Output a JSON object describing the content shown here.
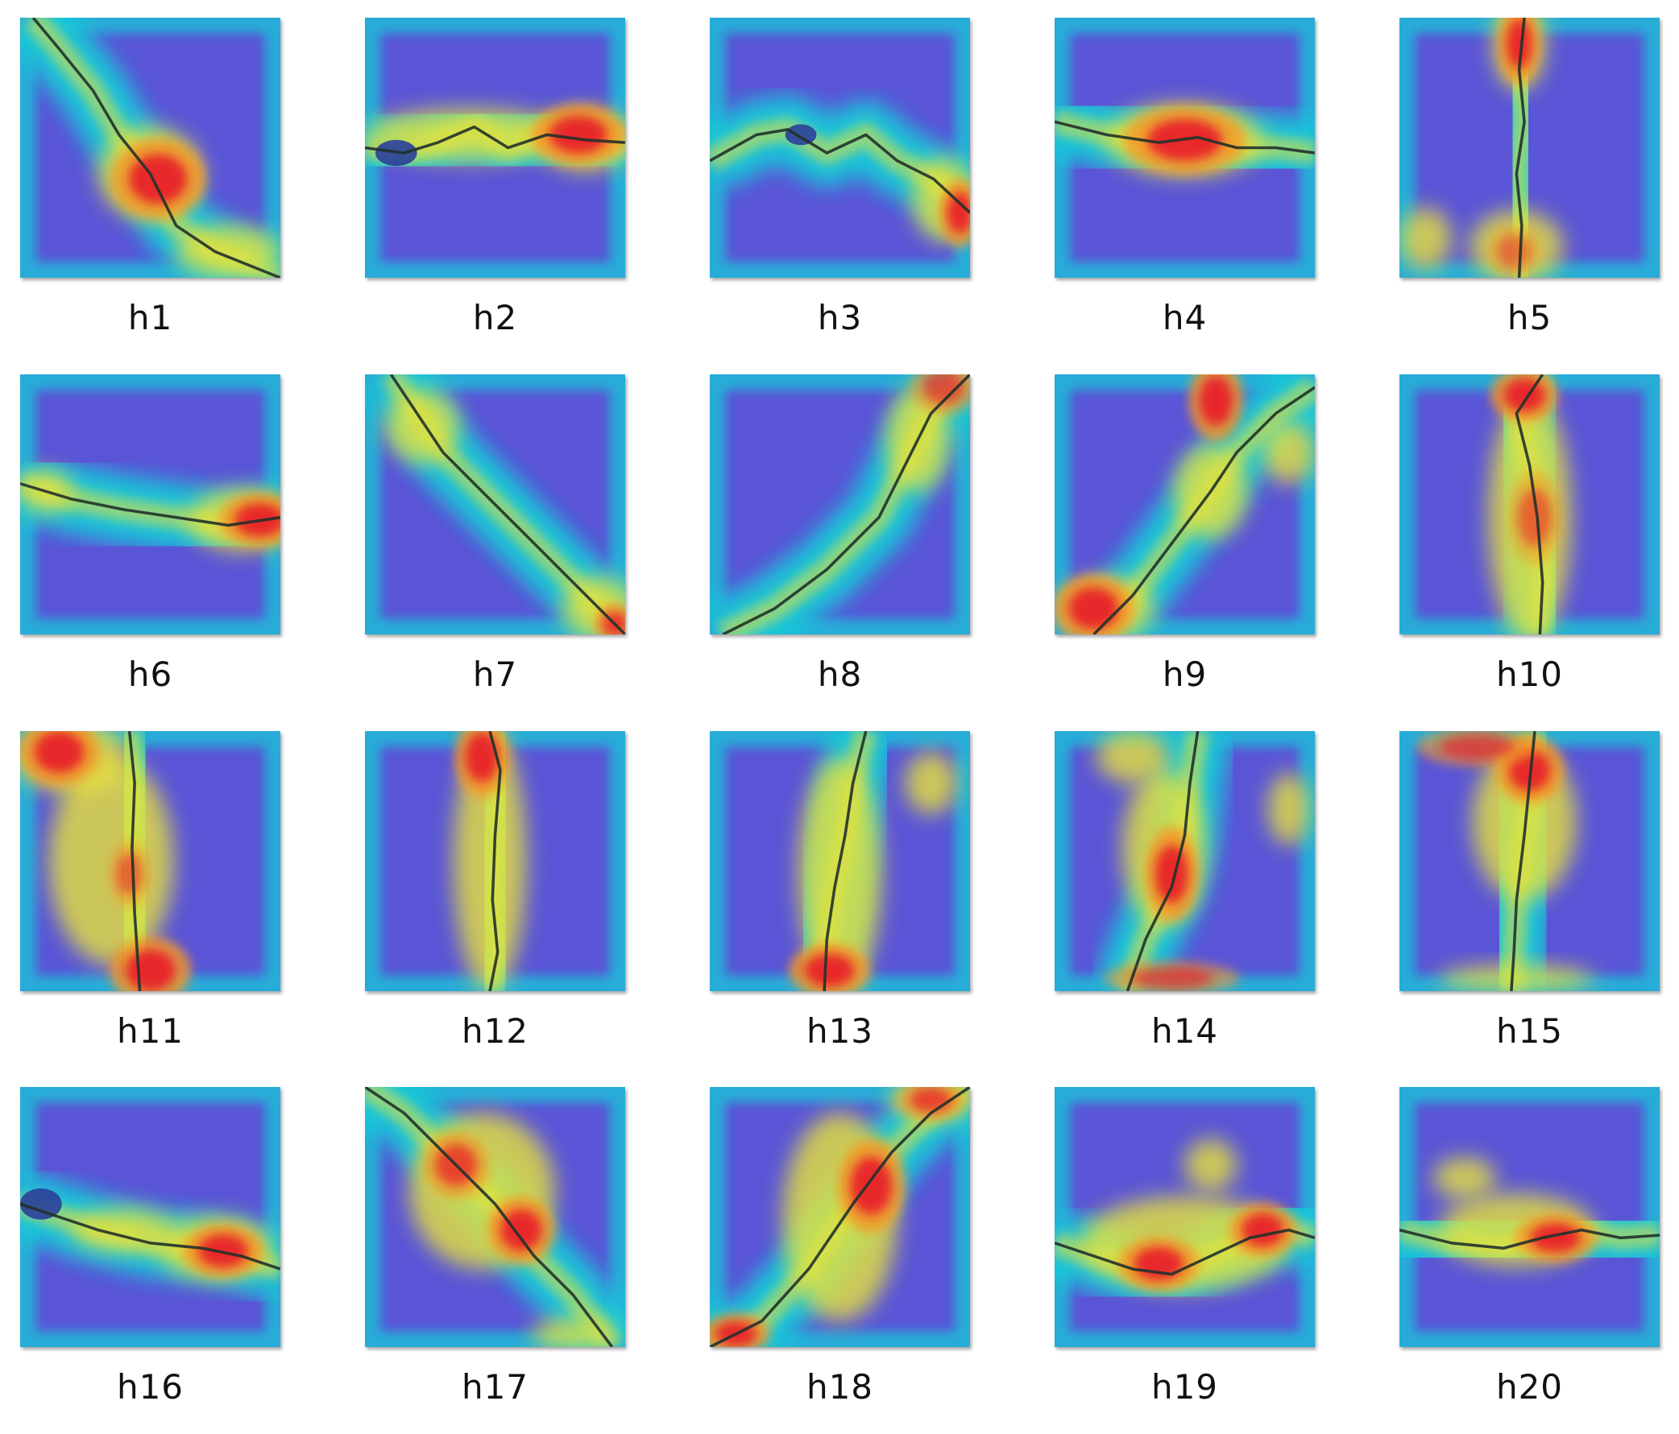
{
  "panels": [
    {
      "label": "h1"
    },
    {
      "label": "h2"
    },
    {
      "label": "h3"
    },
    {
      "label": "h4"
    },
    {
      "label": "h5"
    },
    {
      "label": "h6"
    },
    {
      "label": "h7"
    },
    {
      "label": "h8"
    },
    {
      "label": "h9"
    },
    {
      "label": "h10"
    },
    {
      "label": "h11"
    },
    {
      "label": "h12"
    },
    {
      "label": "h13"
    },
    {
      "label": "h14"
    },
    {
      "label": "h15"
    },
    {
      "label": "h16"
    },
    {
      "label": "h17"
    },
    {
      "label": "h18"
    },
    {
      "label": "h19"
    },
    {
      "label": "h20"
    }
  ],
  "colors": {
    "background": "#ffffff",
    "heatmap_low": "#5a55d6",
    "heatmap_mid": "#19c9d8",
    "heatmap_warm": "#e8e33a",
    "heatmap_high": "#e8212a",
    "crack": "#22312a"
  }
}
